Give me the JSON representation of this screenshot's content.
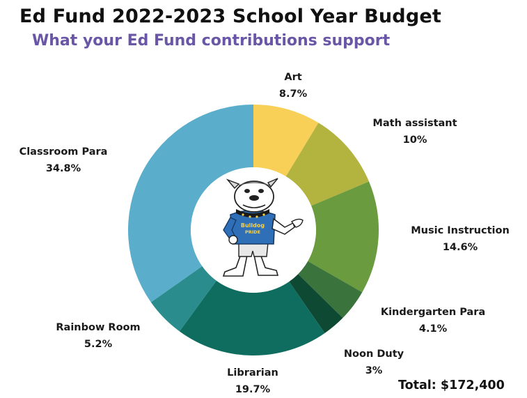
{
  "header": {
    "title": "Ed Fund 2022-2023 School Year Budget",
    "subtitle": "What your Ed Fund contributions support"
  },
  "footer": {
    "total": "Total: $172,400"
  },
  "mascot": {
    "icon": "bulldog-mascot",
    "shirt_text_1": "Bulldog",
    "shirt_text_2": "PRIDE"
  },
  "colors": {
    "title": "#111111",
    "subtitle": "#6a56a6"
  },
  "chart_data": {
    "type": "pie",
    "donut": true,
    "categories": [
      "Art",
      "Math assistant",
      "Music Instruction",
      "Kindergarten Para",
      "Noon Duty",
      "Librarian",
      "Rainbow Room",
      "Classroom Para"
    ],
    "values": [
      8.7,
      10,
      14.6,
      4.1,
      3,
      19.7,
      5.2,
      34.8
    ],
    "value_labels": [
      "8.7%",
      "10%",
      "14.6%",
      "4.1%",
      "3%",
      "19.7%",
      "5.2%",
      "34.8%"
    ],
    "colors": [
      "#f8d057",
      "#b3b43f",
      "#6a9b3e",
      "#3a733c",
      "#0e4a33",
      "#0f6d5f",
      "#2a8c8c",
      "#5aaecb"
    ],
    "start_angle": "top (12 o'clock), clockwise"
  }
}
